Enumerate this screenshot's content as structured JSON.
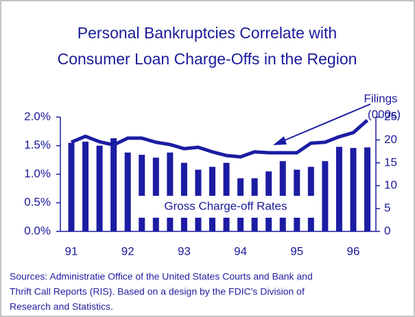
{
  "chart_data": {
    "type": "bar_line",
    "title": [
      "Personal Bankruptcies Correlate with",
      "Consumer Loan Charge-Offs in the Region"
    ],
    "categories": [
      "91",
      null,
      null,
      null,
      "92",
      null,
      null,
      null,
      "93",
      null,
      null,
      null,
      "94",
      null,
      null,
      null,
      "95",
      null,
      null,
      null,
      "96",
      null
    ],
    "series": [
      {
        "name": "Gross Charge-off Rates",
        "type": "bar",
        "color": "#1c1ca3",
        "axis": "y",
        "values": [
          1.55,
          1.57,
          1.5,
          1.63,
          1.38,
          1.34,
          1.29,
          1.38,
          1.2,
          1.08,
          1.13,
          1.2,
          0.93,
          0.93,
          1.05,
          1.23,
          1.08,
          1.13,
          1.23,
          1.48,
          1.46,
          1.47
        ]
      },
      {
        "name": "Filings (000s)",
        "type": "line",
        "color": "#1c1ca3",
        "axis": "y2",
        "values": [
          19.5,
          20.8,
          19.6,
          18.9,
          20.4,
          20.4,
          19.5,
          19.0,
          18.1,
          18.4,
          17.4,
          16.6,
          16.3,
          17.4,
          17.2,
          17.2,
          17.2,
          19.3,
          19.5,
          20.7,
          21.6,
          24.3
        ]
      }
    ],
    "ylim": [
      0,
      2.0
    ],
    "yticks": [
      {
        "value": 0,
        "label": "0.0%"
      },
      {
        "value": 0.5,
        "label": "0.5%"
      },
      {
        "value": 1.0,
        "label": "1.0%"
      },
      {
        "value": 1.5,
        "label": "1.5%"
      },
      {
        "value": 2.0,
        "label": "2.0%"
      }
    ],
    "y2lim": [
      0,
      25
    ],
    "y2ticks": [
      0,
      5,
      10,
      15,
      20,
      25
    ],
    "sources": [
      "Sources:  Administratie Office of the United States Courts and Bank and",
      "Thrift Call Reports (RIS).  Based on a design by the FDIC's Division of",
      "Research and Statistics."
    ]
  }
}
